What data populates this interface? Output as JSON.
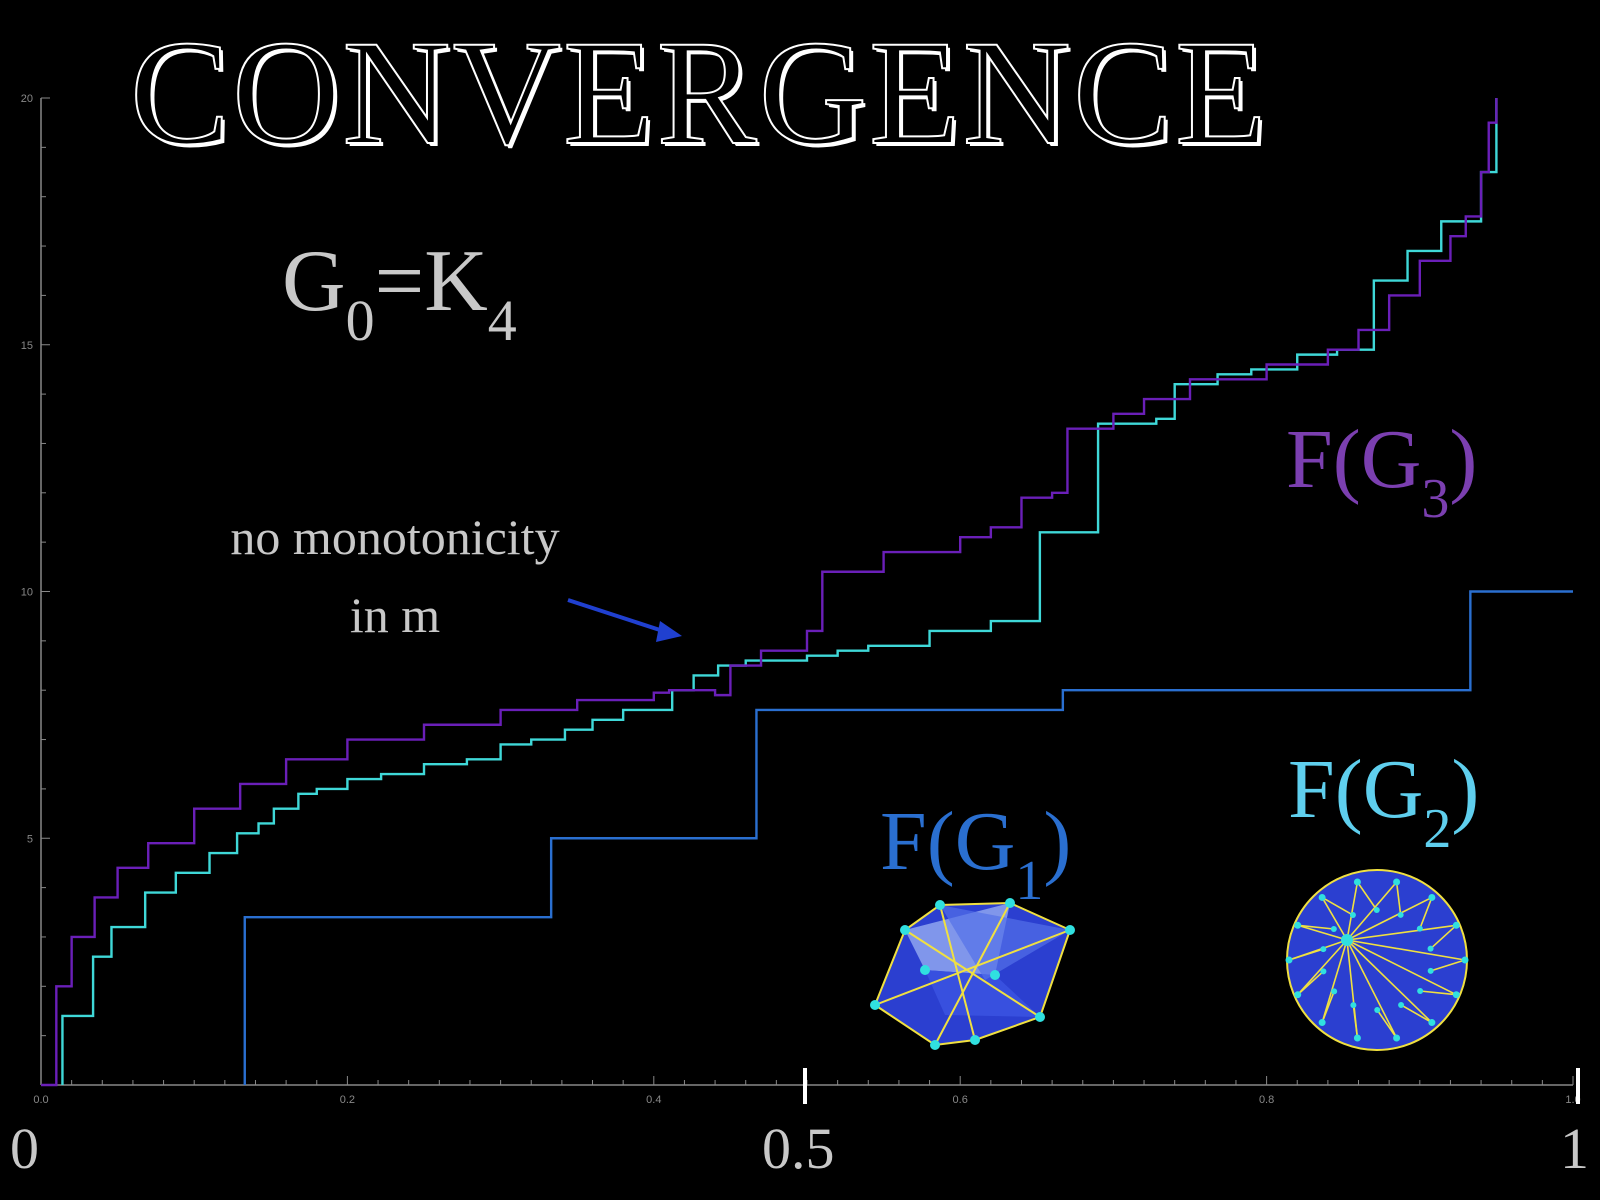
{
  "title": "CONVERGENCE",
  "graph_label": {
    "main": "G",
    "sub0": "0",
    "eq": "=K",
    "sub4": "4"
  },
  "annotation": {
    "line1": "no monotonicity",
    "line2": "in m"
  },
  "series_labels": {
    "f3": {
      "prefix": "F(G",
      "sub": "3",
      "suffix": ")"
    },
    "f2": {
      "prefix": "F(G",
      "sub": "2",
      "suffix": ")"
    },
    "f1": {
      "prefix": "F(G",
      "sub": "1",
      "suffix": ")"
    }
  },
  "big_ticks": {
    "t0": "0",
    "t05": "0.5",
    "t1": "1"
  },
  "colors": {
    "f1": "#2a6fd0",
    "f2": "#3fd8d8",
    "f3": "#6a1fb8",
    "arrow": "#2040d0",
    "text": "#c8c8c8"
  },
  "chart_data": {
    "type": "line",
    "title": "CONVERGENCE",
    "xlim": [
      0,
      1
    ],
    "ylim": [
      0,
      20
    ],
    "xticks": [
      "0.0",
      "0.2",
      "0.4",
      "0.6",
      "0.8",
      "1.0"
    ],
    "yticks": [
      "5",
      "10",
      "15",
      "20"
    ],
    "series": [
      {
        "name": "F(G1)",
        "step": true,
        "x": [
          0.133,
          0.333,
          0.467,
          0.667,
          0.933,
          1.0
        ],
        "y": [
          3.4,
          5.0,
          7.6,
          8.0,
          10.0,
          10.0
        ]
      },
      {
        "name": "F(G2)",
        "step": true,
        "x": [
          0.014,
          0.034,
          0.046,
          0.068,
          0.088,
          0.11,
          0.128,
          0.142,
          0.152,
          0.168,
          0.18,
          0.2,
          0.222,
          0.25,
          0.278,
          0.3,
          0.32,
          0.342,
          0.36,
          0.38,
          0.412,
          0.426,
          0.442,
          0.46,
          0.5,
          0.52,
          0.54,
          0.58,
          0.62,
          0.652,
          0.69,
          0.728,
          0.74,
          0.768,
          0.79,
          0.82,
          0.846,
          0.87,
          0.892,
          0.914,
          0.94,
          0.95
        ],
        "y": [
          1.4,
          2.6,
          3.2,
          3.9,
          4.3,
          4.7,
          5.1,
          5.3,
          5.6,
          5.9,
          6.0,
          6.2,
          6.3,
          6.5,
          6.6,
          6.9,
          7.0,
          7.2,
          7.4,
          7.6,
          8.0,
          8.3,
          8.5,
          8.6,
          8.7,
          8.8,
          8.9,
          9.2,
          9.4,
          11.2,
          13.4,
          13.5,
          14.2,
          14.4,
          14.5,
          14.8,
          14.9,
          16.3,
          16.9,
          17.5,
          18.5,
          20.0
        ]
      },
      {
        "name": "F(G3)",
        "step": false,
        "x": [
          0.0,
          0.01,
          0.02,
          0.035,
          0.05,
          0.07,
          0.1,
          0.13,
          0.16,
          0.2,
          0.25,
          0.3,
          0.35,
          0.4,
          0.41,
          0.44,
          0.45,
          0.47,
          0.5,
          0.51,
          0.55,
          0.6,
          0.62,
          0.64,
          0.66,
          0.67,
          0.7,
          0.72,
          0.75,
          0.8,
          0.84,
          0.86,
          0.88,
          0.9,
          0.92,
          0.93,
          0.94,
          0.945,
          0.95
        ],
        "y": [
          0.0,
          2.0,
          3.0,
          3.8,
          4.4,
          4.9,
          5.6,
          6.1,
          6.6,
          7.0,
          7.3,
          7.6,
          7.8,
          7.95,
          8.0,
          7.9,
          8.5,
          8.8,
          9.2,
          10.4,
          10.8,
          11.1,
          11.3,
          11.9,
          12.0,
          13.3,
          13.6,
          13.9,
          14.3,
          14.6,
          14.9,
          15.3,
          16.0,
          16.7,
          17.2,
          17.6,
          18.5,
          19.5,
          20.0
        ]
      }
    ]
  }
}
